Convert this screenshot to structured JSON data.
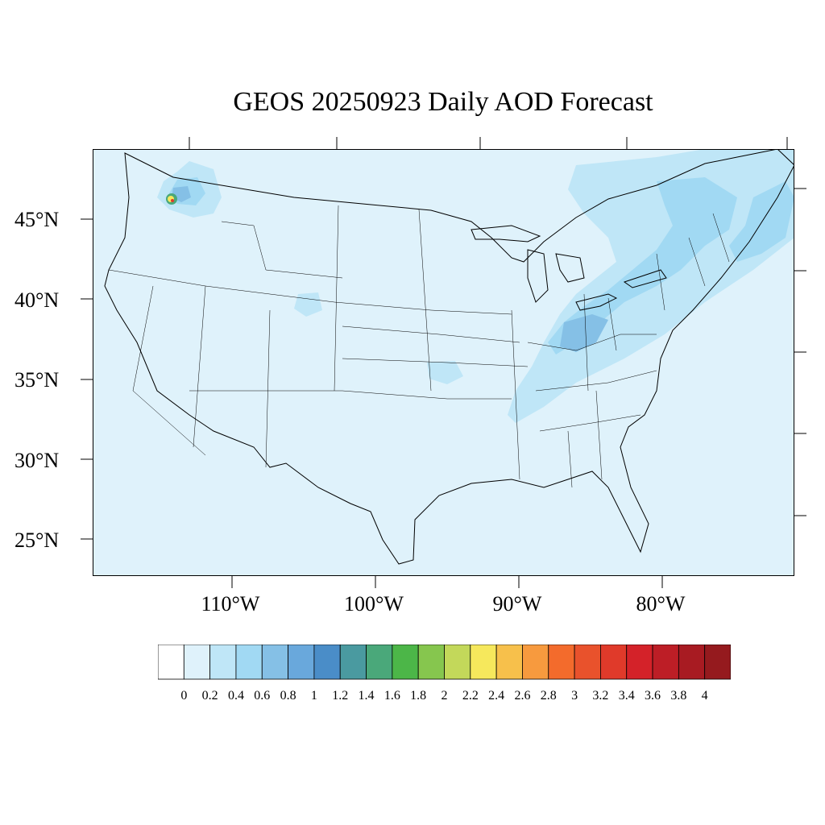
{
  "title": "GEOS 20250923 Daily AOD Forecast",
  "colors": {
    "background_field": "#dff2fb",
    "boundary_lines": "#000000"
  },
  "map": {
    "projection": "conic",
    "lat_labels": [
      "45°N",
      "40°N",
      "35°N",
      "30°N",
      "25°N"
    ],
    "lon_labels": [
      "110°W",
      "100°W",
      "90°W",
      "80°W"
    ],
    "variable": "AOD",
    "hotspot_region": "Washington/Idaho border (wildfire smoke)",
    "enhanced_region": "Ohio Valley / Northeast US"
  },
  "colorbar": {
    "labels": [
      "0",
      "0.2",
      "0.4",
      "0.6",
      "0.8",
      "1",
      "1.2",
      "1.4",
      "1.6",
      "1.8",
      "2",
      "2.2",
      "2.4",
      "2.6",
      "2.8",
      "3",
      "3.2",
      "3.4",
      "3.6",
      "3.8",
      "4"
    ],
    "colors": [
      "#ffffff",
      "#dff2fb",
      "#bfe6f7",
      "#a1d9f3",
      "#85c0e6",
      "#69a8dc",
      "#4a8dc8",
      "#4a9aa0",
      "#4aa87a",
      "#4cb648",
      "#86c64e",
      "#c3d85a",
      "#f6e85c",
      "#f7c04b",
      "#f79a3e",
      "#f36b2c",
      "#e9522c",
      "#e03a2a",
      "#d42229",
      "#bd1e26",
      "#a81b22",
      "#951a1e"
    ]
  }
}
